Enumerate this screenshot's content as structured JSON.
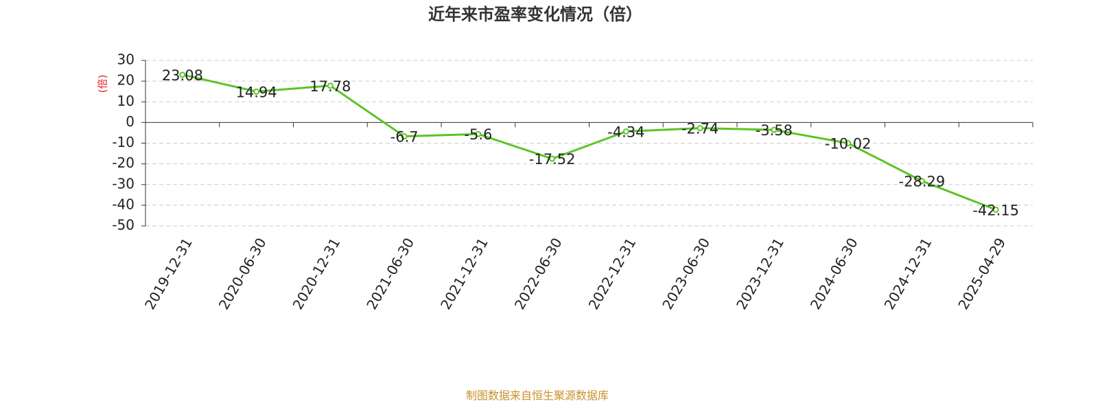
{
  "chart_data": {
    "type": "line",
    "title": "近年来市盈率变化情况（倍）",
    "y_label": "(倍)",
    "source": "制图数据来自恒生聚源数据库",
    "categories": [
      "2019-12-31",
      "2020-06-30",
      "2020-12-31",
      "2021-06-30",
      "2021-12-31",
      "2022-06-30",
      "2022-12-31",
      "2023-06-30",
      "2023-12-31",
      "2024-06-30",
      "2024-12-31",
      "2025-04-29"
    ],
    "values": [
      23.08,
      14.94,
      17.78,
      -6.7,
      -5.6,
      -17.52,
      -4.34,
      -2.74,
      -3.58,
      -10.02,
      -28.29,
      -42.15
    ],
    "color": "#5bc424",
    "ylim": [
      -50,
      30
    ],
    "yticks": [
      -50,
      -40,
      -30,
      -20,
      -10,
      0,
      10,
      20,
      30
    ],
    "grid": true
  }
}
